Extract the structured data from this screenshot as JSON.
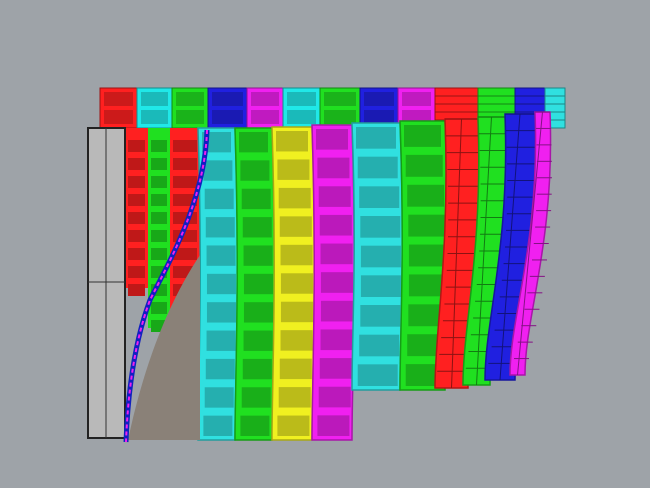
{
  "viewport": {
    "background": "#9ea3a8",
    "back_row_colors": [
      "#ff2020",
      "#20e8e8",
      "#20e020",
      "#2020e0",
      "#f020f0",
      "#20e8e8",
      "#20e020",
      "#2020e0",
      "#f020f0",
      "#ff2020",
      "#20e020",
      "#2020e0",
      "#30e0e0"
    ],
    "front_column_colors": [
      "#30e0e0",
      "#20e020",
      "#f0f020",
      "#f020f0",
      "#30e0e0",
      "#20e020",
      "#ff2020",
      "#20e020",
      "#2020e0",
      "#f020f0"
    ],
    "left_strip_colors": [
      "#ff2020",
      "#20e020"
    ],
    "side_box_color": "#b9b9b9",
    "shadow_wedge_color": "#8a8178",
    "edge_curve_color": "#1020c0"
  }
}
